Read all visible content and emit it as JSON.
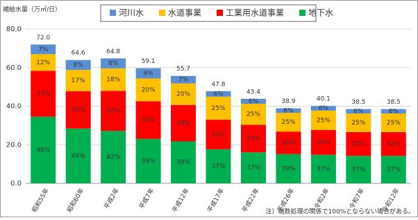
{
  "chart_data": {
    "type": "stacked-percent-bar",
    "y_axis_title": "補給水量（万㎥/日）",
    "note": "注）端数処理の関係で100%とならない場合がある。",
    "categories": [
      "昭和55年",
      "昭和60年",
      "平成2年",
      "平成7年",
      "平成12年",
      "平成17年",
      "平成22年",
      "平成26年",
      "令和2年",
      "令和7年",
      "令和12年"
    ],
    "totals": [
      72.0,
      64.6,
      64.8,
      59.1,
      55.7,
      47.8,
      43.4,
      38.9,
      40.1,
      38.5,
      38.5
    ],
    "total_labels": [
      "72.0",
      "64.6",
      "64.8",
      "59.1",
      "55.7",
      "47.8",
      "43.4",
      "38.9",
      "40.1",
      "38.5",
      "38.5"
    ],
    "series": [
      {
        "name": "地下水",
        "color": "#00b050",
        "values": [
          48,
          44,
          42,
          39,
          39,
          37,
          37,
          39,
          37,
          37,
          37
        ],
        "value_labels": [
          "48%",
          "44%",
          "42%",
          "39%",
          "39%",
          "37%",
          "37%",
          "39%",
          "37%",
          "37%",
          "37%"
        ]
      },
      {
        "name": "工業用水道事業",
        "color": "#ff0000",
        "values": [
          33,
          30,
          32,
          33,
          34,
          32,
          33,
          30,
          32,
          32,
          32
        ],
        "value_labels": [
          "33%",
          "30%",
          "32%",
          "33%",
          "34%",
          "32%",
          "33%",
          "30%",
          "32%",
          "32%",
          "32%"
        ]
      },
      {
        "name": "水道事業",
        "color": "#ffc000",
        "values": [
          12,
          17,
          18,
          20,
          20,
          25,
          25,
          25,
          25,
          25,
          25
        ],
        "value_labels": [
          "12%",
          "17%",
          "18%",
          "20%",
          "20%",
          "25%",
          "25%",
          "25%",
          "25%",
          "25%",
          "25%"
        ]
      },
      {
        "name": "河川水",
        "color": "#5b8fd4",
        "values": [
          7,
          8,
          8,
          9,
          7,
          6,
          6,
          6,
          6,
          6,
          6
        ],
        "value_labels": [
          "7%",
          "8%",
          "8%",
          "9%",
          "7%",
          "6%",
          "6%",
          "6%",
          "6%",
          "6%",
          "6%"
        ]
      }
    ],
    "legend_order": [
      3,
      2,
      1,
      0
    ],
    "ylim": [
      0,
      80
    ],
    "yticks": [
      {
        "value": 0,
        "label": "0.0"
      },
      {
        "value": 20,
        "label": "20.0"
      },
      {
        "value": 40,
        "label": "40.0"
      },
      {
        "value": 60,
        "label": "60.0"
      },
      {
        "value": 80,
        "label": "80.0"
      }
    ],
    "grid": true
  }
}
